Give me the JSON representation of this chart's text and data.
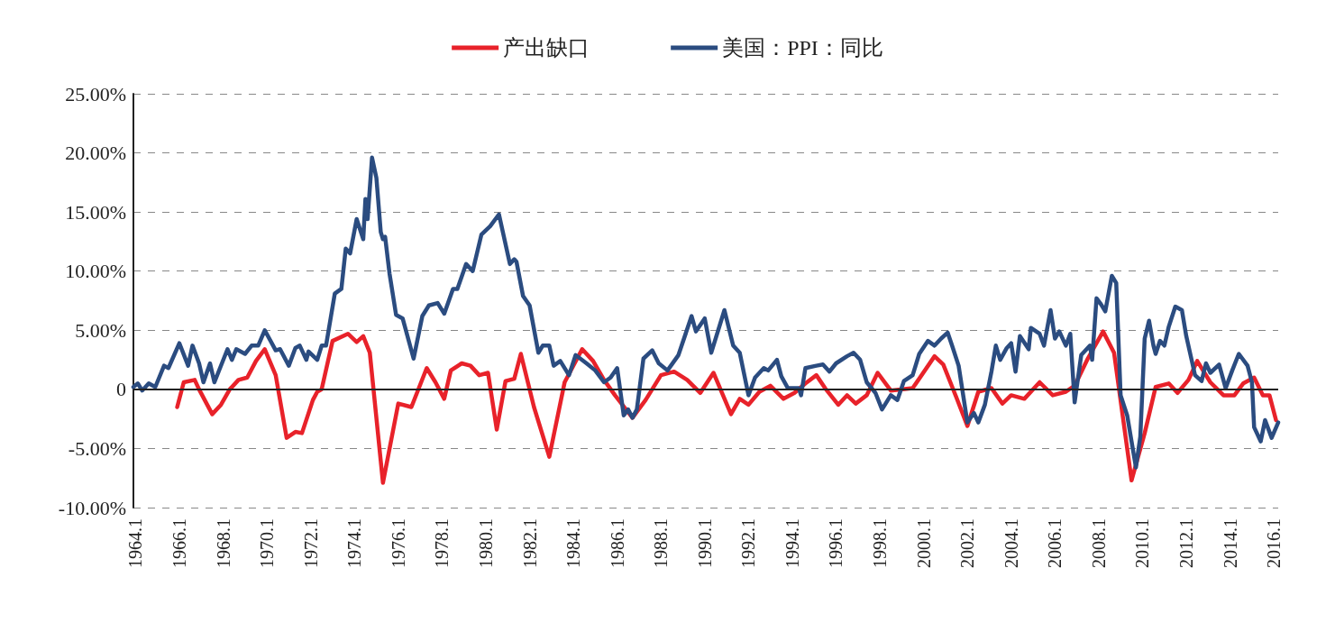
{
  "chart_data": {
    "type": "line",
    "legend": "top",
    "grid": "y",
    "line_style": "solid",
    "marker": "none",
    "xlim": [
      1964,
      2016.3
    ],
    "xticks": [
      1964.1,
      1966.1,
      1968.1,
      1970.1,
      1972.1,
      1974.1,
      1976.1,
      1978.1,
      1980.1,
      1982.1,
      1984.1,
      1986.1,
      1988.1,
      1990.1,
      1992.1,
      1994.1,
      1996.1,
      1998.1,
      2000.1,
      2002.1,
      2004.1,
      2006.1,
      2008.1,
      2010.1,
      2012.1,
      2014.1,
      2016.1
    ],
    "ref_lines": [
      {
        "axis": "y",
        "value": 0,
        "color": "#222222"
      }
    ],
    "ylim": [
      -10,
      25
    ],
    "yticks": [
      {
        "value": -10,
        "label": "-10.00%"
      },
      {
        "value": -5,
        "label": "-5.00%"
      },
      0,
      {
        "value": 5,
        "label": "5.00%"
      },
      {
        "value": 10,
        "label": "10.00%"
      },
      {
        "value": 15,
        "label": "15.00%"
      },
      {
        "value": 20,
        "label": "20.00%"
      },
      {
        "value": 25,
        "label": "25.00%"
      }
    ],
    "series": [
      {
        "name": "产出缺口",
        "color": "#e8222a",
        "x": [
          1966.0,
          1966.3,
          1966.8,
          1967.0,
          1967.6,
          1968.0,
          1968.4,
          1968.8,
          1969.2,
          1969.6,
          1970.0,
          1970.5,
          1971.0,
          1971.4,
          1971.7,
          1972.2,
          1972.4,
          1972.6,
          1973.1,
          1973.8,
          1974.2,
          1974.5,
          1974.8,
          1975.4,
          1976.1,
          1976.7,
          1977.4,
          1977.8,
          1978.2,
          1978.5,
          1979.0,
          1979.4,
          1979.8,
          1980.2,
          1980.6,
          1981.0,
          1981.4,
          1981.7,
          1982.3,
          1983.0,
          1983.7,
          1984.5,
          1985.0,
          1985.5,
          1986.0,
          1986.8,
          1987.4,
          1988.1,
          1988.7,
          1989.3,
          1989.9,
          1990.5,
          1991.3,
          1991.7,
          1992.1,
          1992.6,
          1993.1,
          1993.7,
          1994.2,
          1994.7,
          1995.2,
          1995.6,
          1996.2,
          1996.6,
          1997.0,
          1997.5,
          1998.0,
          1998.6,
          1999.6,
          2000.6,
          2001.0,
          2001.6,
          2002.1,
          2002.6,
          2003.2,
          2003.7,
          2004.1,
          2004.7,
          2005.4,
          2006.0,
          2006.6,
          2007.0,
          2007.6,
          2008.3,
          2008.8,
          2009.6,
          2010.2,
          2010.7,
          2011.3,
          2011.7,
          2012.2,
          2012.6,
          2013.2,
          2013.8,
          2014.3,
          2014.7,
          2015.2,
          2015.6,
          2015.9,
          2016.2
        ],
        "values": [
          -1.5,
          0.6,
          0.8,
          0,
          -2.1,
          -1.3,
          0,
          0.8,
          1.0,
          2.4,
          3.4,
          1.2,
          -4.1,
          -3.6,
          -3.7,
          -0.9,
          -0.2,
          0,
          4.1,
          4.7,
          4.0,
          4.5,
          3.1,
          -7.9,
          -1.2,
          -1.5,
          1.8,
          0.6,
          -0.8,
          1.6,
          2.2,
          2.0,
          1.2,
          1.4,
          -3.4,
          0.7,
          0.9,
          3.0,
          -1.5,
          -5.7,
          0.6,
          3.4,
          2.4,
          0.8,
          -0.5,
          -2.4,
          -0.9,
          1.2,
          1.5,
          0.8,
          -0.3,
          1.4,
          -2.1,
          -0.8,
          -1.3,
          -0.2,
          0.3,
          -0.8,
          -0.3,
          0.5,
          1.2,
          0.1,
          -1.3,
          -0.5,
          -1.2,
          -0.5,
          1.4,
          -0.1,
          0.1,
          2.8,
          2.1,
          -0.7,
          -3.1,
          -0.2,
          0.1,
          -1.2,
          -0.5,
          -0.8,
          0.6,
          -0.5,
          -0.2,
          0.3,
          2.6,
          4.9,
          3.1,
          -7.7,
          -3.7,
          0.2,
          0.5,
          -0.3,
          0.8,
          2.4,
          0.6,
          -0.5,
          -0.5,
          0.5,
          1.0,
          -0.5,
          -0.5,
          -2.6
        ]
      },
      {
        "name": "美国：PPI：同比",
        "color": "#2b4c80",
        "x": [
          1964.0,
          1964.2,
          1964.4,
          1964.7,
          1965.0,
          1965.4,
          1965.6,
          1966.1,
          1966.5,
          1966.7,
          1967.0,
          1967.2,
          1967.5,
          1967.7,
          1968.3,
          1968.5,
          1968.7,
          1969.1,
          1969.4,
          1969.7,
          1970.0,
          1970.5,
          1970.7,
          1971.1,
          1971.4,
          1971.6,
          1971.9,
          1972.0,
          1972.4,
          1972.6,
          1972.8,
          1973.2,
          1973.5,
          1973.7,
          1973.9,
          1974.2,
          1974.5,
          1974.6,
          1974.7,
          1974.9,
          1975.1,
          1975.3,
          1975.4,
          1975.5,
          1975.7,
          1976.0,
          1976.3,
          1976.8,
          1977.2,
          1977.5,
          1977.9,
          1978.2,
          1978.6,
          1978.8,
          1979.2,
          1979.5,
          1979.9,
          1980.3,
          1980.7,
          1981.2,
          1981.4,
          1981.5,
          1981.8,
          1982.1,
          1982.5,
          1982.7,
          1983.0,
          1983.2,
          1983.5,
          1983.9,
          1984.2,
          1984.7,
          1985.1,
          1985.5,
          1985.8,
          1986.1,
          1986.4,
          1986.6,
          1986.8,
          1987.0,
          1987.3,
          1987.7,
          1988.0,
          1988.4,
          1988.9,
          1989.5,
          1989.7,
          1990.1,
          1990.4,
          1991.0,
          1991.4,
          1991.7,
          1992.1,
          1992.4,
          1992.8,
          1993.0,
          1993.4,
          1993.6,
          1993.9,
          1994.4,
          1994.5,
          1994.7,
          1995.2,
          1995.5,
          1995.8,
          1996.1,
          1996.6,
          1996.9,
          1997.2,
          1997.5,
          1997.9,
          1998.2,
          1998.6,
          1998.9,
          1999.2,
          1999.6,
          1999.9,
          2000.3,
          2000.6,
          2000.9,
          2001.2,
          2001.4,
          2001.7,
          2002.1,
          2002.4,
          2002.6,
          2002.9,
          2003.2,
          2003.4,
          2003.6,
          2003.9,
          2004.1,
          2004.3,
          2004.5,
          2004.9,
          2005.0,
          2005.4,
          2005.6,
          2005.9,
          2006.1,
          2006.3,
          2006.6,
          2006.8,
          2007.0,
          2007.3,
          2007.7,
          2007.8,
          2008.0,
          2008.2,
          2008.4,
          2008.7,
          2008.9,
          2009.1,
          2009.4,
          2009.6,
          2009.8,
          2010.0,
          2010.2,
          2010.4,
          2010.6,
          2010.7,
          2010.9,
          2011.1,
          2011.3,
          2011.6,
          2011.9,
          2012.1,
          2012.5,
          2012.8,
          2013.0,
          2013.2,
          2013.6,
          2013.9,
          2014.2,
          2014.5,
          2014.9,
          2015.1,
          2015.2,
          2015.5,
          2015.7,
          2016.0,
          2016.3
        ],
        "values": [
          0.2,
          0.5,
          -0.1,
          0.5,
          0.2,
          2.0,
          1.8,
          3.9,
          2.0,
          3.7,
          2.2,
          0.6,
          2.2,
          0.6,
          3.4,
          2.5,
          3.4,
          3.0,
          3.7,
          3.7,
          5.0,
          3.3,
          3.4,
          2.0,
          3.5,
          3.7,
          2.5,
          3.2,
          2.5,
          3.7,
          3.7,
          8.1,
          8.5,
          11.9,
          11.5,
          14.4,
          12.7,
          16.1,
          14.4,
          19.6,
          17.9,
          13.3,
          12.7,
          12.9,
          9.8,
          6.3,
          6.0,
          2.6,
          6.2,
          7.1,
          7.3,
          6.4,
          8.5,
          8.5,
          10.6,
          10.0,
          13.1,
          13.8,
          14.8,
          10.6,
          11.0,
          10.8,
          7.9,
          7.1,
          3.1,
          3.7,
          3.7,
          2.0,
          2.4,
          1.2,
          2.9,
          2.2,
          1.6,
          0.6,
          1.0,
          1.8,
          -2.2,
          -1.7,
          -2.4,
          -1.7,
          2.6,
          3.3,
          2.2,
          1.6,
          2.9,
          6.2,
          4.9,
          6.0,
          3.1,
          6.7,
          3.7,
          3.1,
          -0.5,
          1.0,
          1.8,
          1.6,
          2.5,
          1.1,
          0.1,
          0.1,
          -0.5,
          1.8,
          2.0,
          2.1,
          1.5,
          2.2,
          2.8,
          3.1,
          2.5,
          0.6,
          -0.3,
          -1.7,
          -0.5,
          -0.9,
          0.7,
          1.2,
          3.0,
          4.1,
          3.7,
          4.3,
          4.8,
          3.7,
          2.0,
          -2.8,
          -2.0,
          -2.8,
          -1.3,
          1.5,
          3.7,
          2.5,
          3.5,
          3.9,
          1.5,
          4.5,
          3.4,
          5.2,
          4.7,
          3.7,
          6.7,
          4.3,
          4.9,
          3.7,
          4.7,
          -1.1,
          2.9,
          3.7,
          2.5,
          7.7,
          7.2,
          6.6,
          9.6,
          9.0,
          -0.5,
          -2.2,
          -4.4,
          -6.6,
          -4.0,
          4.3,
          5.8,
          3.7,
          3.0,
          4.1,
          3.7,
          5.3,
          7.0,
          6.7,
          4.5,
          1.2,
          0.7,
          2.2,
          1.4,
          2.1,
          0.1,
          1.6,
          3.0,
          2.0,
          0.6,
          -3.2,
          -4.4,
          -2.6,
          -4.1,
          -2.8
        ]
      }
    ]
  }
}
